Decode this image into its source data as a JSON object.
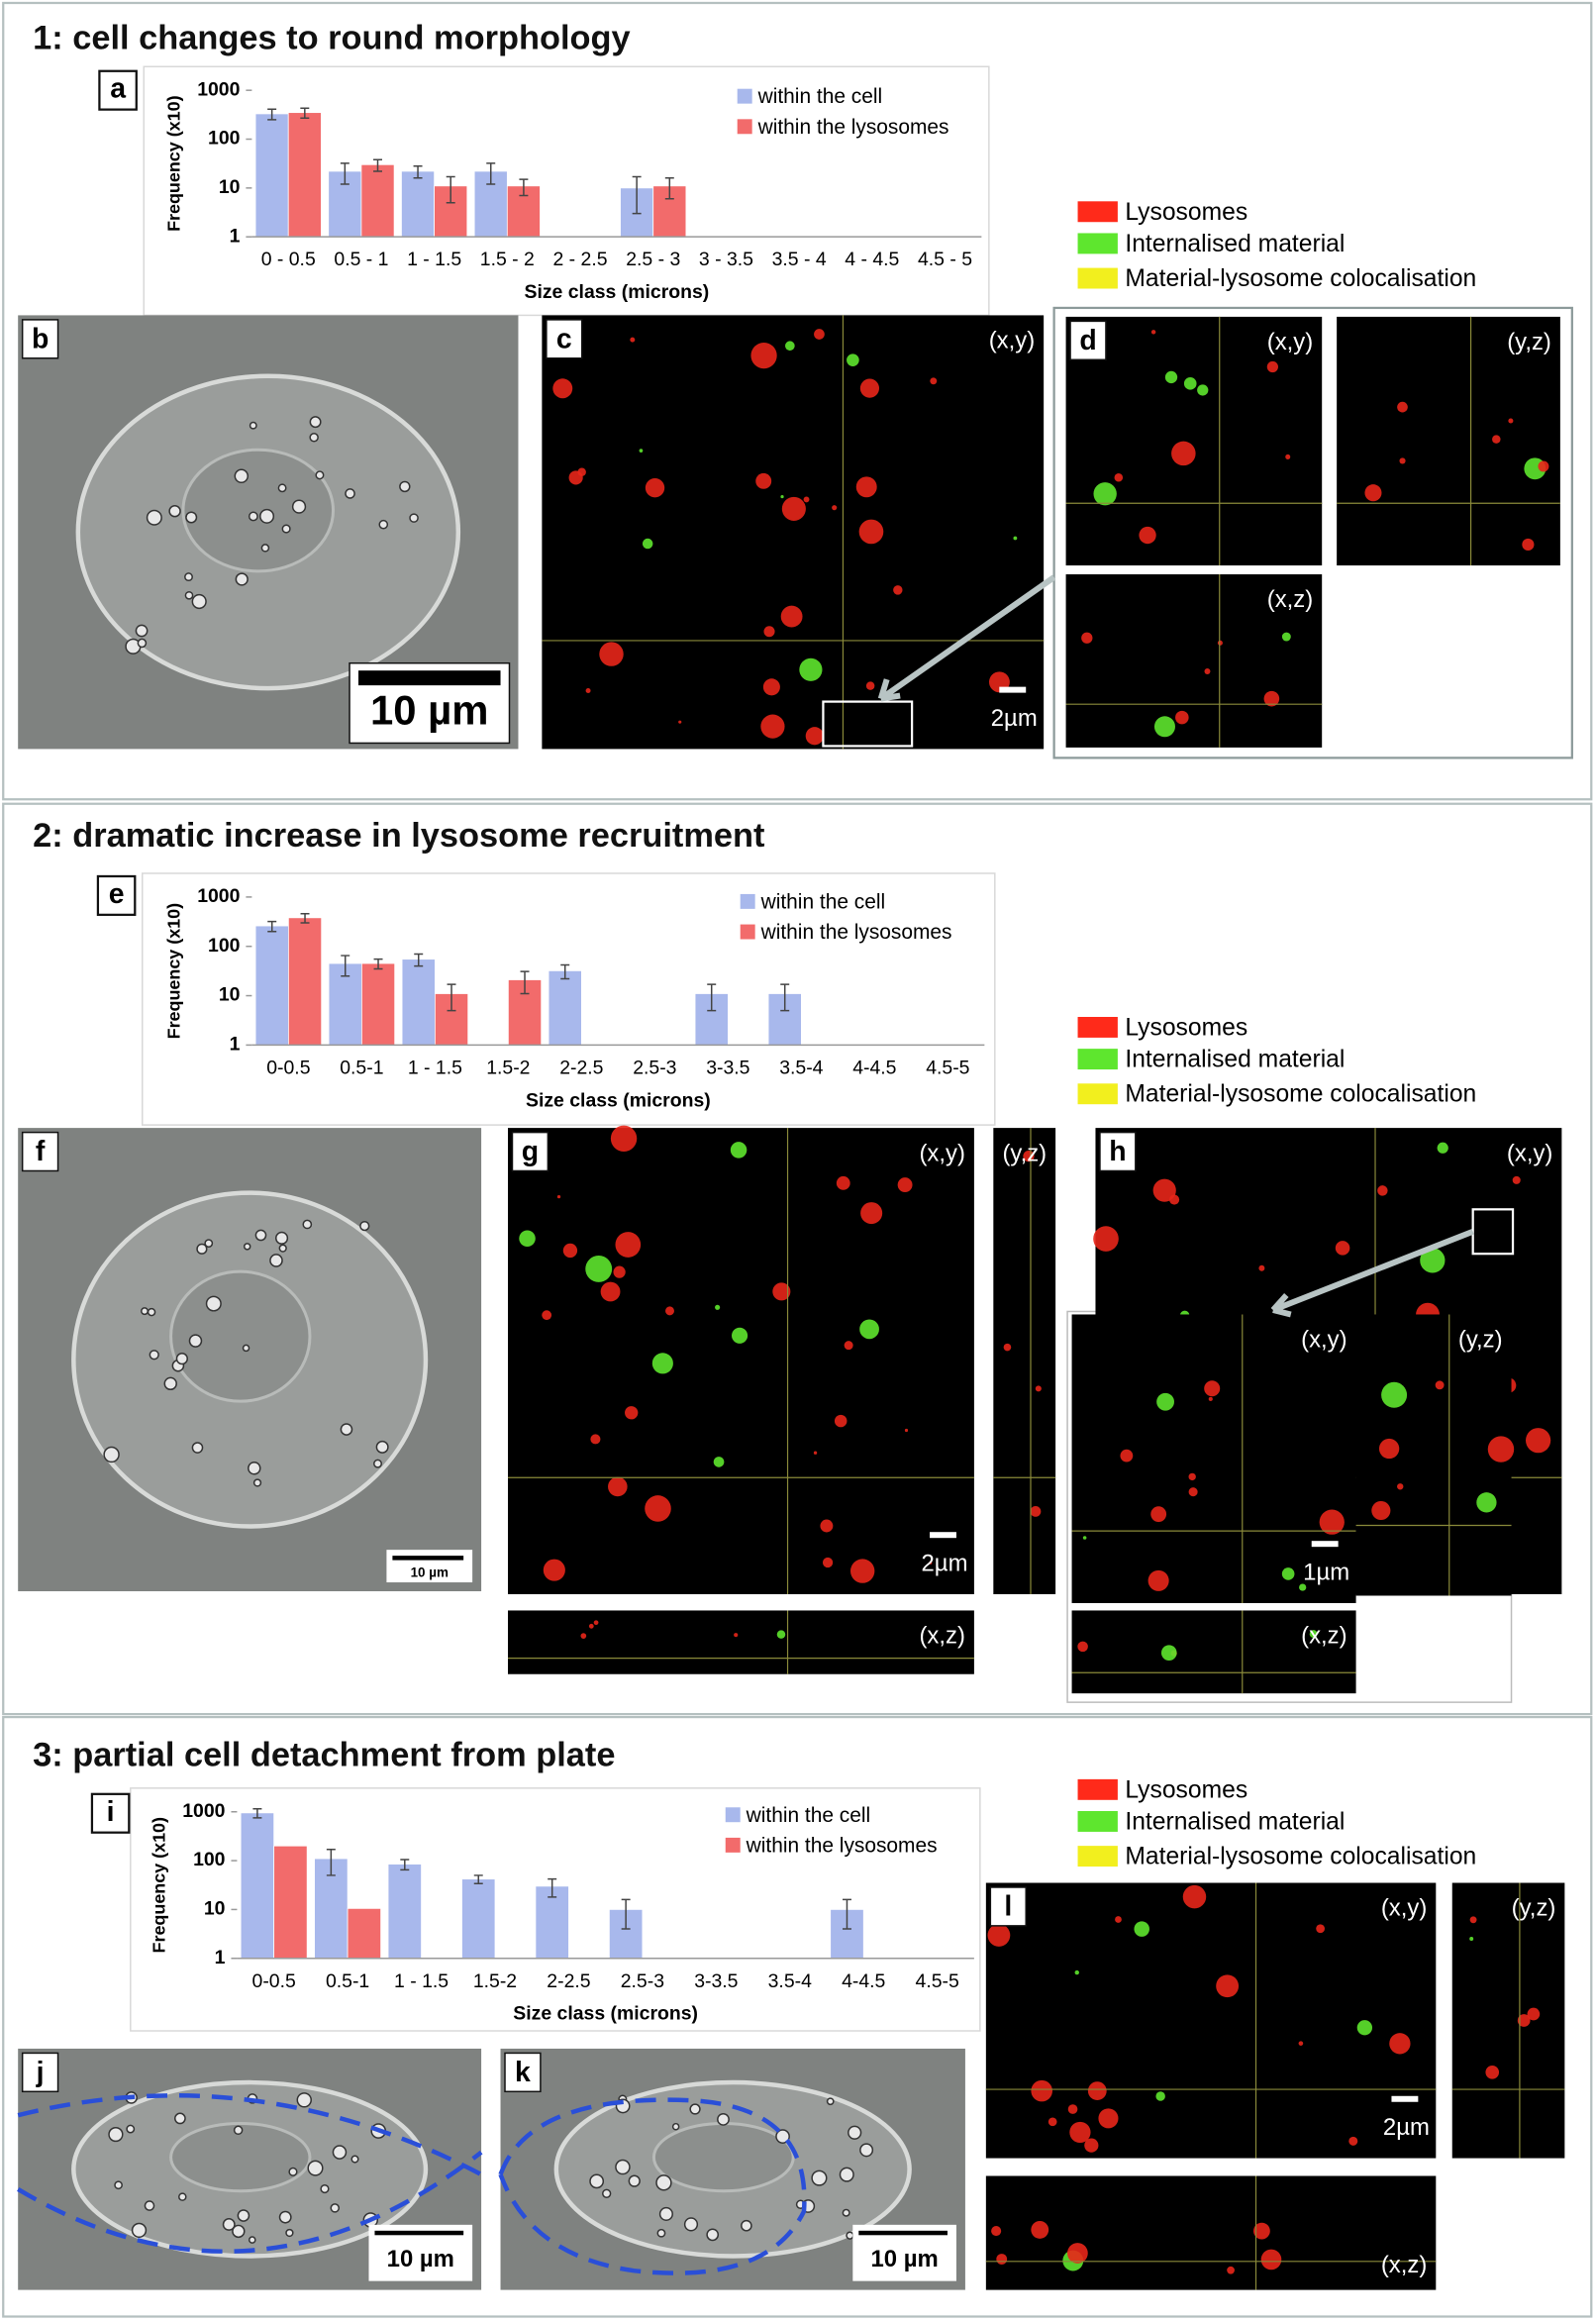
{
  "sections": [
    {
      "title": "1: cell changes to round morphology"
    },
    {
      "title": "2: dramatic increase in lysosome recruitment"
    },
    {
      "title": "3: partial cell detachment from plate"
    }
  ],
  "chart_data": [
    {
      "type": "bar",
      "label": "a",
      "log_scale": true,
      "ylabel": "Frequency (x10)",
      "xlabel": "Size class (microns)",
      "categories": [
        "0 - 0.5",
        "0.5 - 1",
        "1 - 1.5",
        "1.5 - 2",
        "2 - 2.5",
        "2.5 - 3",
        "3 - 3.5",
        "3.5 - 4",
        "4 - 4.5",
        "4.5 - 5"
      ],
      "ylim": [
        1,
        1000
      ],
      "yticks": [
        1,
        10,
        100,
        1000
      ],
      "series": [
        {
          "name": "within the cell",
          "color": "#a8b8ec",
          "values": [
            330,
            22,
            22,
            22,
            null,
            10,
            null,
            null,
            null,
            null
          ],
          "errors": [
            80,
            10,
            6,
            10,
            null,
            7,
            null,
            null,
            null,
            null
          ]
        },
        {
          "name": "within the lysosomes",
          "color": "#f26b6b",
          "values": [
            350,
            30,
            11,
            11,
            null,
            11,
            null,
            null,
            null,
            null
          ],
          "errors": [
            80,
            8,
            6,
            4,
            null,
            5,
            null,
            null,
            null,
            null
          ]
        }
      ]
    },
    {
      "type": "bar",
      "label": "e",
      "log_scale": true,
      "ylabel": "Frequency (x10)",
      "xlabel": "Size class (microns)",
      "categories": [
        "0-0.5",
        "0.5-1",
        "1 - 1.5",
        "1.5-2",
        "2-2.5",
        "2.5-3",
        "3-3.5",
        "3.5-4",
        "4-4.5",
        "4.5-5"
      ],
      "ylim": [
        1,
        1000
      ],
      "yticks": [
        1,
        10,
        100,
        1000
      ],
      "series": [
        {
          "name": "within the cell",
          "color": "#a8b8ec",
          "values": [
            260,
            45,
            55,
            null,
            32,
            null,
            11,
            11,
            null,
            null
          ],
          "errors": [
            60,
            20,
            15,
            null,
            10,
            null,
            6,
            6,
            null,
            null
          ]
        },
        {
          "name": "within the lysosomes",
          "color": "#f26b6b",
          "values": [
            380,
            45,
            11,
            21,
            null,
            null,
            null,
            null,
            null,
            null
          ],
          "errors": [
            80,
            10,
            6,
            10,
            null,
            null,
            null,
            null,
            null,
            null
          ]
        }
      ]
    },
    {
      "type": "bar",
      "label": "i",
      "log_scale": true,
      "ylabel": "Frequency (x10)",
      "xlabel": "Size class (microns)",
      "categories": [
        "0-0.5",
        "0.5-1",
        "1 - 1.5",
        "1.5-2",
        "2-2.5",
        "2.5-3",
        "3-3.5",
        "3.5-4",
        "4-4.5",
        "4.5-5"
      ],
      "ylim": [
        1,
        1000
      ],
      "yticks": [
        1,
        10,
        100,
        1000
      ],
      "series": [
        {
          "name": "within the cell",
          "color": "#a8b8ec",
          "values": [
            950,
            110,
            85,
            42,
            30,
            10,
            null,
            null,
            10,
            null
          ],
          "errors": [
            200,
            60,
            20,
            8,
            12,
            6,
            null,
            null,
            6,
            null
          ]
        },
        {
          "name": "within the lysosomes",
          "color": "#f26b6b",
          "values": [
            200,
            10.5,
            null,
            null,
            null,
            null,
            null,
            null,
            null,
            null
          ],
          "errors": [
            null,
            null,
            null,
            null,
            null,
            null,
            null,
            null,
            null,
            null
          ]
        }
      ]
    }
  ],
  "color_legends": [
    {
      "items": [
        {
          "name": "Lysosomes",
          "color": "#ff2a1a"
        },
        {
          "name": "Internalised material",
          "color": "#5ee62e"
        },
        {
          "name": "Material-lysosome colocalisation",
          "color": "#f2ef1e"
        }
      ]
    },
    {
      "items": [
        {
          "name": "Lysosomes",
          "color": "#ff2a1a"
        },
        {
          "name": "Internalised material",
          "color": "#5ee62e"
        },
        {
          "name": "Material-lysosome colocalisation",
          "color": "#f2ef1e"
        }
      ]
    },
    {
      "items": [
        {
          "name": "Lysosomes",
          "color": "#ff2a1a"
        },
        {
          "name": "Internalised material",
          "color": "#5ee62e"
        },
        {
          "name": "Material-lysosome colocalisation",
          "color": "#f2ef1e"
        }
      ]
    }
  ],
  "images": [
    {
      "label": "b",
      "scale": "10 µm"
    },
    {
      "label": "c",
      "view": "(x,y)",
      "scale": "2µm"
    },
    {
      "label": "d",
      "view": "(x,y)"
    },
    {
      "view": "(y,z)"
    },
    {
      "view": "(x,z)"
    },
    {
      "label": "f",
      "scale": "10 µm"
    },
    {
      "label": "g",
      "view": "(x,y)",
      "scale": "2µm"
    },
    {
      "view": "(y,z)"
    },
    {
      "view": "(x,z)"
    },
    {
      "label": "h",
      "view": "(x,y)"
    },
    {
      "view": "(x,y)",
      "scale": "1µm"
    },
    {
      "view": "(y,z)"
    },
    {
      "view": "(x,z)"
    },
    {
      "label": "j",
      "scale": "10 µm"
    },
    {
      "label": "k",
      "scale": "10 µm"
    },
    {
      "label": "l",
      "view": "(x,y)",
      "scale": "2µm"
    },
    {
      "view": "(y,z)"
    },
    {
      "view": "(x,z)"
    }
  ]
}
